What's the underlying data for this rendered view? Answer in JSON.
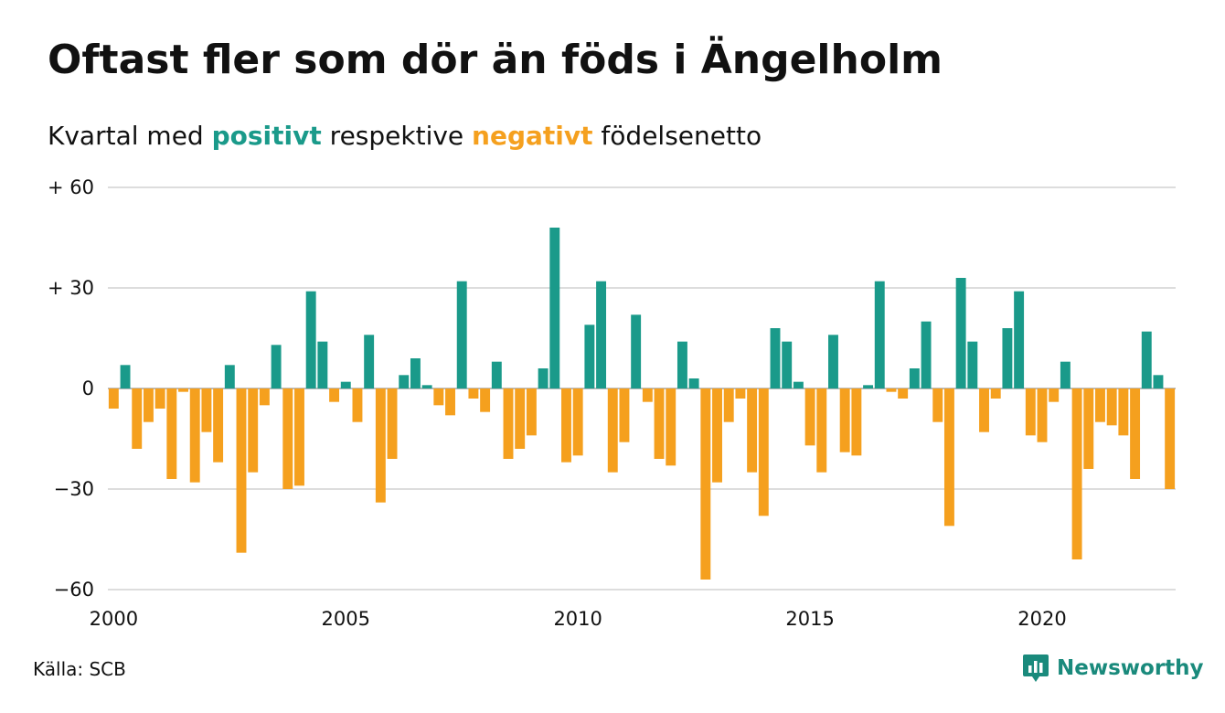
{
  "title": "Oftast fler som dör än föds i Ängelholm",
  "subtitle": {
    "prefix": "Kvartal med ",
    "positive_word": "positivt",
    "middle": " respektive ",
    "negative_word": "negativt",
    "suffix": " födelsenetto"
  },
  "source": "Källa: SCB",
  "brand": {
    "name": "Newsworthy",
    "icon": "chart-bubble-icon"
  },
  "colors": {
    "positive": "#1a9a8a",
    "negative": "#f5a01e",
    "grid": "#dddddd",
    "brand": "#1a8a7c"
  },
  "chart_data": {
    "type": "bar",
    "title": "",
    "xlabel": "",
    "ylabel": "",
    "ylim": [
      -60,
      60
    ],
    "y_ticks": [
      {
        "value": 60,
        "label": "+ 60"
      },
      {
        "value": 30,
        "label": "+ 30"
      },
      {
        "value": 0,
        "label": "0"
      },
      {
        "value": -30,
        "label": "−30"
      },
      {
        "value": -60,
        "label": "−60"
      }
    ],
    "x_ticks": [
      {
        "value": 2000,
        "label": "2000"
      },
      {
        "value": 2005,
        "label": "2005"
      },
      {
        "value": 2010,
        "label": "2010"
      },
      {
        "value": 2015,
        "label": "2015"
      },
      {
        "value": 2020,
        "label": "2020"
      }
    ],
    "x_start": 2000,
    "periods_per_year": 4,
    "grid": true,
    "legend": "none",
    "values": [
      -6,
      7,
      -18,
      -10,
      -6,
      -27,
      -1,
      -28,
      -13,
      -22,
      7,
      -49,
      -25,
      -5,
      13,
      -30,
      -29,
      29,
      14,
      -4,
      2,
      -10,
      16,
      -34,
      -21,
      4,
      9,
      1,
      -5,
      -8,
      32,
      -3,
      -7,
      8,
      -21,
      -18,
      -14,
      6,
      48,
      -22,
      -20,
      19,
      32,
      -25,
      -16,
      22,
      -4,
      -21,
      -23,
      14,
      3,
      -57,
      -28,
      -10,
      -3,
      -25,
      -38,
      18,
      14,
      2,
      -17,
      -25,
      16,
      -19,
      -20,
      1,
      32,
      -1,
      -3,
      6,
      20,
      -10,
      -41,
      33,
      14,
      -13,
      -3,
      18,
      29,
      -14,
      -16,
      -4,
      8,
      -51,
      -24,
      -10,
      -11,
      -14,
      -27,
      17,
      4,
      -30
    ]
  }
}
